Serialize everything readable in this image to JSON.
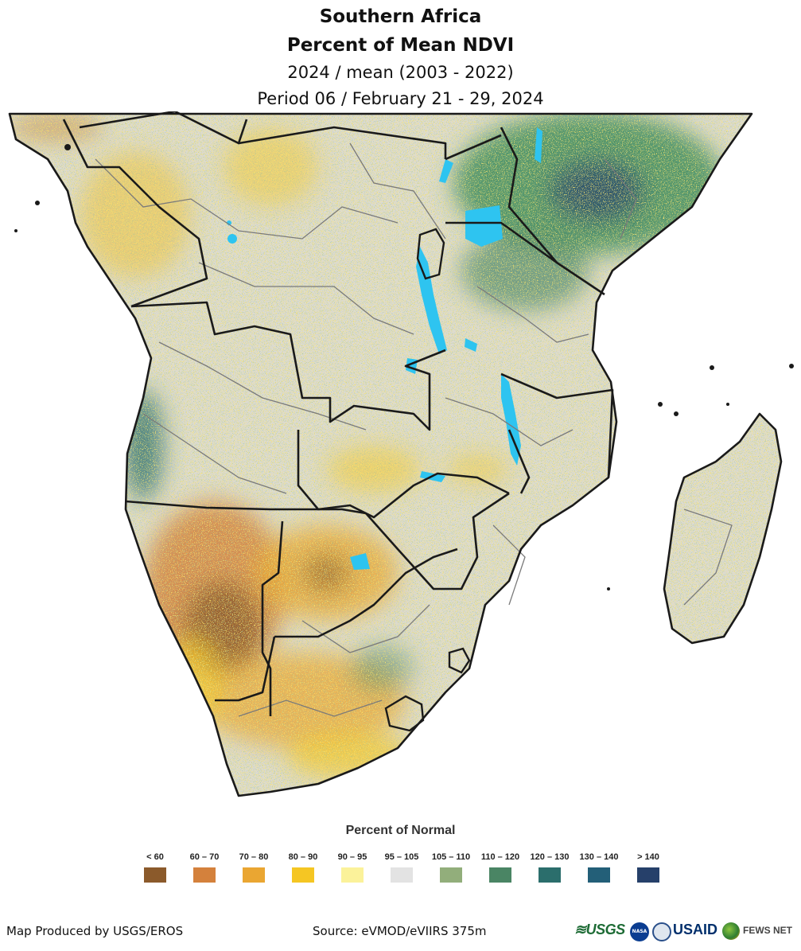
{
  "title": {
    "line1": "Southern Africa",
    "line2": "Percent of Mean NDVI",
    "line3": "2024 / mean (2003 - 2022)",
    "line4": "Period 06 / February 21 - 29, 2024"
  },
  "legend": {
    "title": "Percent of Normal",
    "items": [
      {
        "label": "< 60",
        "color": "#8b5a2b"
      },
      {
        "label": "60 – 70",
        "color": "#d4813c"
      },
      {
        "label": "70 – 80",
        "color": "#eaa632"
      },
      {
        "label": "80 – 90",
        "color": "#f5c623"
      },
      {
        "label": "90 – 95",
        "color": "#fbf29a"
      },
      {
        "label": "95 – 105",
        "color": "#e3e3e3"
      },
      {
        "label": "105 – 110",
        "color": "#92ae7b"
      },
      {
        "label": "110 – 120",
        "color": "#4a8564"
      },
      {
        "label": "120 – 130",
        "color": "#2b6e6c"
      },
      {
        "label": "130 – 140",
        "color": "#235f78"
      },
      {
        "label": "> 140",
        "color": "#26406a"
      }
    ]
  },
  "footer": {
    "producer": "Map Produced by USGS/EROS",
    "source": "Source: eVMOD/eVIIRS 375m"
  },
  "logos": {
    "usgs": "≋USGS",
    "nasa": "NASA",
    "usaid": "USAID",
    "fews": "FEWS NET"
  },
  "colors": {
    "water": "#2ec4f0",
    "border": "#1a1a1a",
    "admin": "#7a7a7a",
    "land_base": "#dddbcf"
  }
}
